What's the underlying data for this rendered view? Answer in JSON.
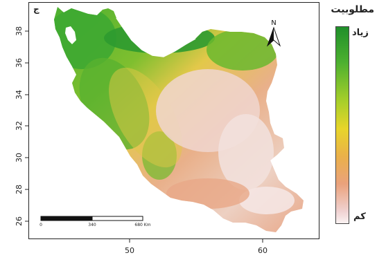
{
  "panel_letter": "ج",
  "legend": {
    "title": "مطلوبیت",
    "high_label": "زیاد",
    "low_label": "کم",
    "colors": [
      "#1f8f2a",
      "#4cb030",
      "#a8cf2a",
      "#e8d52a",
      "#eab04a",
      "#eaa27c",
      "#f0d2d2",
      "#faf2f2"
    ]
  },
  "axes": {
    "y_ticks": [
      "38",
      "36",
      "34",
      "32",
      "30",
      "28",
      "26"
    ],
    "x_ticks": [
      "50",
      "60"
    ]
  },
  "scale_bar": {
    "labels": [
      "0",
      "340",
      "680 Km"
    ]
  },
  "north_arrow": {
    "label": "N"
  }
}
